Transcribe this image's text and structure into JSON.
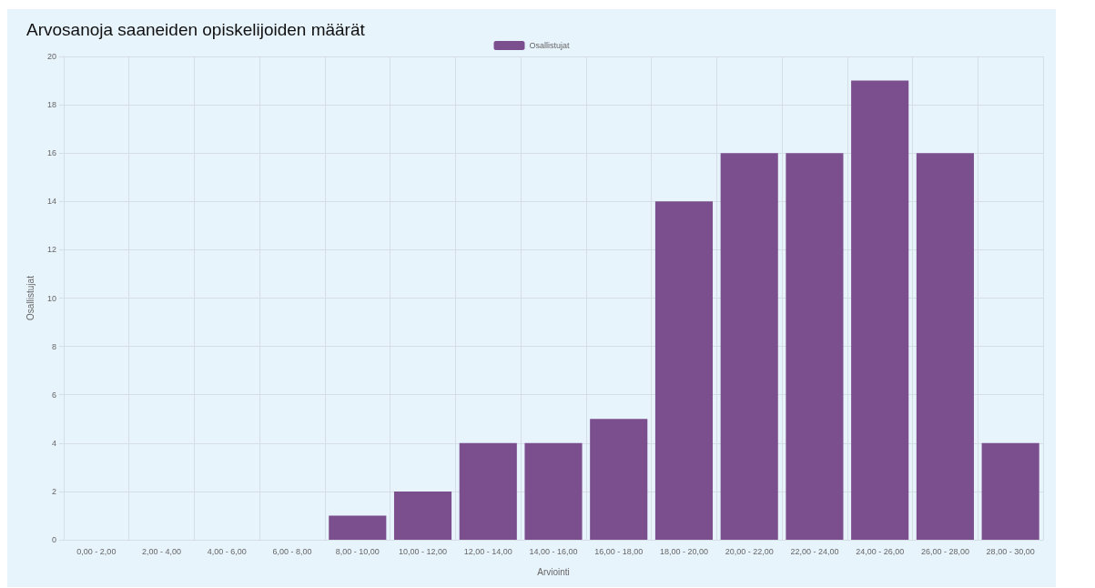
{
  "chart_data": {
    "type": "bar",
    "title": "Arvosanoja saaneiden opiskelijoiden määrät",
    "xlabel": "Arviointi",
    "ylabel": "Osallistujat",
    "categories": [
      "0,00 - 2,00",
      "2,00 - 4,00",
      "4,00 - 6,00",
      "6,00 - 8,00",
      "8,00 - 10,00",
      "10,00 - 12,00",
      "12,00 - 14,00",
      "14,00 - 16,00",
      "16,00 - 18,00",
      "18,00 - 20,00",
      "20,00 - 22,00",
      "22,00 - 24,00",
      "24,00 - 26,00",
      "26,00 - 28,00",
      "28,00 - 30,00"
    ],
    "series": [
      {
        "name": "Osallistujat",
        "color": "#7b4f8e",
        "values": [
          0,
          0,
          0,
          0,
          1,
          2,
          4,
          4,
          5,
          14,
          16,
          16,
          19,
          16,
          4
        ]
      }
    ],
    "ylim": [
      0,
      20
    ],
    "yticks": [
      0,
      2,
      4,
      6,
      8,
      10,
      12,
      14,
      16,
      18,
      20
    ],
    "grid": true,
    "legend": "top"
  }
}
